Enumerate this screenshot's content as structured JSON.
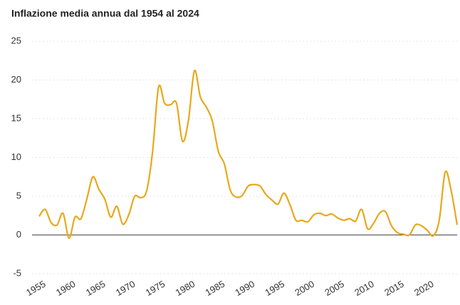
{
  "chart_data": {
    "type": "line",
    "title": "Inflazione media annua dal 1954 al 2024",
    "x": [
      1954,
      1955,
      1956,
      1957,
      1958,
      1959,
      1960,
      1961,
      1962,
      1963,
      1964,
      1965,
      1966,
      1967,
      1968,
      1969,
      1970,
      1971,
      1972,
      1973,
      1974,
      1975,
      1976,
      1977,
      1978,
      1979,
      1980,
      1981,
      1982,
      1983,
      1984,
      1985,
      1986,
      1987,
      1988,
      1989,
      1990,
      1991,
      1992,
      1993,
      1994,
      1995,
      1996,
      1997,
      1998,
      1999,
      2000,
      2001,
      2002,
      2003,
      2004,
      2005,
      2006,
      2007,
      2008,
      2009,
      2010,
      2011,
      2012,
      2013,
      2014,
      2015,
      2016,
      2017,
      2018,
      2019,
      2020,
      2021,
      2022,
      2023,
      2024
    ],
    "series": [
      {
        "name": "Inflazione",
        "color": "#e8a81c",
        "values": [
          2.4,
          3.3,
          1.6,
          1.3,
          2.8,
          -0.4,
          2.3,
          2.1,
          4.7,
          7.5,
          5.9,
          4.6,
          2.3,
          3.7,
          1.4,
          2.6,
          5.0,
          4.8,
          5.7,
          10.8,
          19.1,
          17.0,
          16.8,
          17.0,
          12.1,
          14.8,
          21.2,
          17.8,
          16.5,
          14.7,
          10.8,
          9.2,
          5.8,
          4.9,
          5.1,
          6.3,
          6.5,
          6.3,
          5.2,
          4.5,
          4.0,
          5.4,
          3.9,
          1.9,
          1.9,
          1.7,
          2.6,
          2.8,
          2.5,
          2.7,
          2.2,
          1.9,
          2.1,
          1.8,
          3.3,
          0.8,
          1.5,
          2.8,
          3.0,
          1.2,
          0.3,
          0.1,
          0.0,
          1.3,
          1.2,
          0.6,
          -0.1,
          1.9,
          8.1,
          5.7,
          1.3
        ]
      }
    ],
    "xlim": [
      1954,
      2024
    ],
    "xticks": [
      1955,
      1960,
      1965,
      1970,
      1975,
      1980,
      1985,
      1990,
      1995,
      2000,
      2005,
      2010,
      2015,
      2020
    ],
    "ylim": [
      -5,
      25
    ],
    "yticks": [
      -5,
      0,
      5,
      10,
      15,
      20,
      25
    ],
    "grid": true
  }
}
